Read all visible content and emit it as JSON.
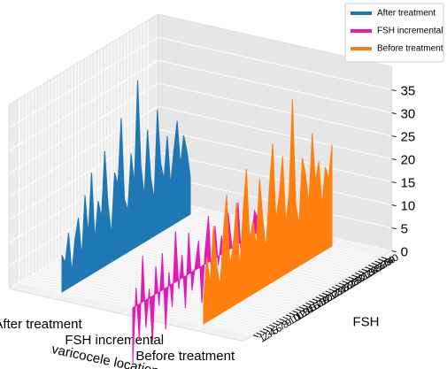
{
  "chart_data": {
    "type": "polygon3d",
    "xlabel": "varicocele locations",
    "ylabel": "FSH",
    "categories": [
      "After treatment",
      "FSH incremental",
      "Before treatment"
    ],
    "x": [
      1,
      2,
      3,
      4,
      5,
      6,
      7,
      8,
      9,
      10,
      11,
      12,
      13,
      14,
      15,
      16,
      17,
      18,
      19,
      20,
      21,
      22,
      23,
      24,
      25,
      26,
      27,
      28,
      29,
      30,
      31,
      32,
      33,
      34,
      35,
      36,
      37,
      38,
      39,
      40
    ],
    "ylim": [
      1,
      40
    ],
    "yticks": [
      1,
      2,
      3,
      4,
      5,
      6,
      7,
      8,
      9,
      10,
      11,
      12,
      13,
      14,
      15,
      16,
      17,
      18,
      19,
      20,
      21,
      22,
      23,
      24,
      25,
      26,
      27,
      28,
      29,
      30,
      31,
      32,
      33,
      34,
      35,
      36,
      37,
      38,
      39,
      40
    ],
    "zlim": [
      0,
      40
    ],
    "zticks": [
      0,
      5,
      10,
      15,
      20,
      25,
      30,
      35
    ],
    "grid": true,
    "legend": "upper right",
    "series": [
      {
        "name": "After treatment",
        "color": "#1f77b4",
        "values": [
          8,
          6,
          12,
          3,
          10,
          14,
          5,
          18,
          9,
          22,
          7,
          15,
          11,
          25,
          13,
          6,
          19,
          16,
          30,
          12,
          9,
          21,
          14,
          36,
          17,
          10,
          24,
          13,
          8,
          27,
          15,
          11,
          20,
          9,
          16,
          22,
          12,
          18,
          14,
          8
        ]
      },
      {
        "name": "FSH incremental",
        "color": "#e619b8",
        "values": [
          -12,
          4,
          -8,
          10,
          -6,
          2,
          -10,
          6,
          -3,
          8,
          -9,
          3,
          -5,
          11,
          -2,
          5,
          -7,
          9,
          -4,
          1,
          6,
          -8,
          3,
          10,
          -5,
          7,
          -2,
          4,
          -6,
          8,
          1,
          -3,
          9,
          -4,
          6,
          2,
          -1,
          5,
          3,
          7
        ]
      },
      {
        "name": "Before treatment",
        "color": "#ff7f0e",
        "values": [
          5,
          14,
          8,
          20,
          11,
          6,
          17,
          25,
          9,
          13,
          22,
          7,
          19,
          28,
          12,
          16,
          10,
          24,
          15,
          8,
          21,
          30,
          13,
          18,
          26,
          11,
          17,
          37,
          14,
          9,
          23,
          19,
          12,
          27,
          16,
          20,
          10,
          18,
          15,
          22
        ]
      }
    ]
  }
}
